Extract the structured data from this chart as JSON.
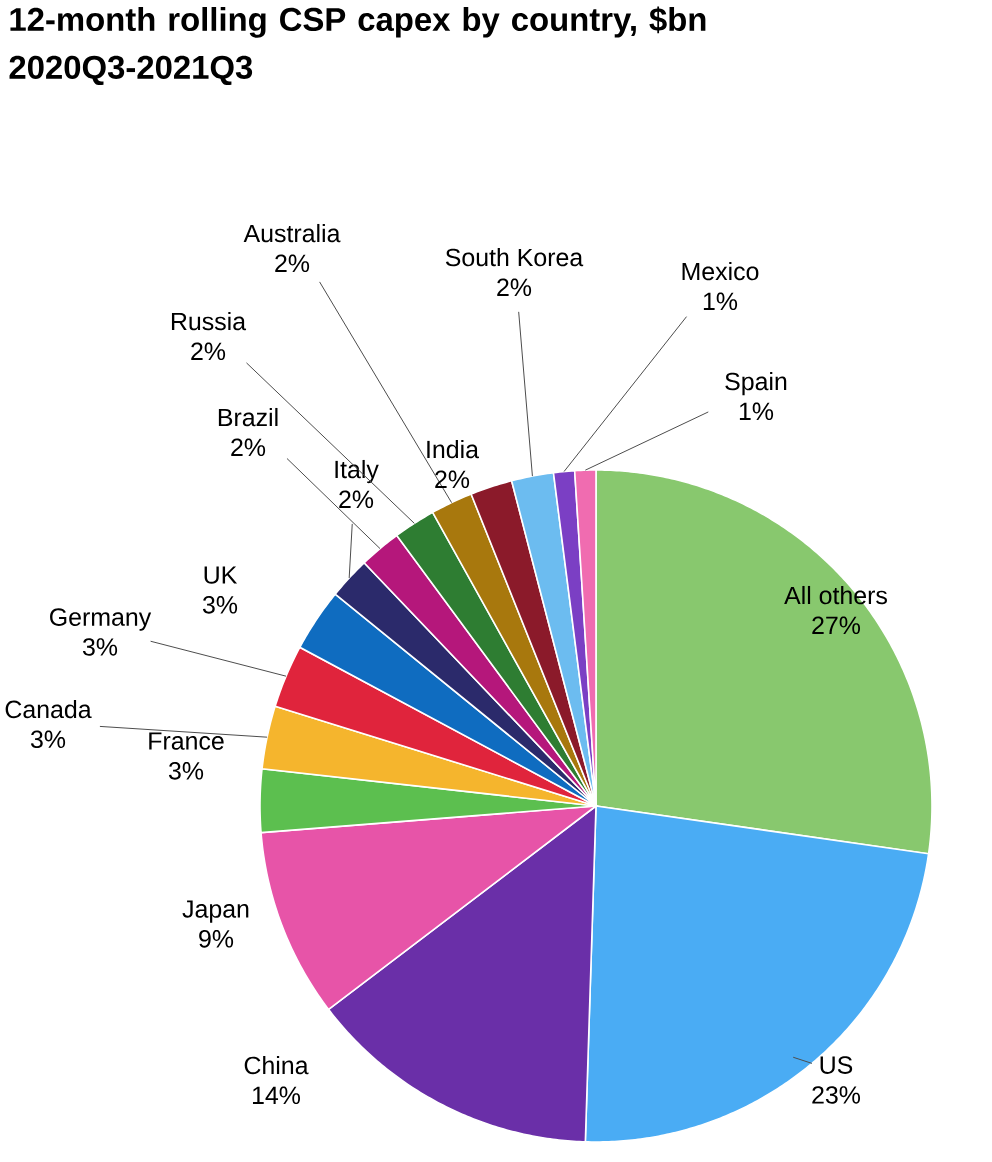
{
  "chart_data": {
    "type": "pie",
    "title": "12-month rolling CSP capex by country, $bn 2020Q3-2021Q3",
    "categories": [
      "All others",
      "US",
      "China",
      "Japan",
      "France",
      "Canada",
      "Germany",
      "UK",
      "Italy",
      "Brazil",
      "Russia",
      "Australia",
      "India",
      "South Korea",
      "Mexico",
      "Spain"
    ],
    "values": [
      27,
      23,
      14,
      9,
      3,
      3,
      3,
      3,
      2,
      2,
      2,
      2,
      2,
      2,
      1,
      1
    ],
    "value_labels": [
      "27%",
      "23%",
      "14%",
      "9%",
      "3%",
      "3%",
      "3%",
      "3%",
      "2%",
      "2%",
      "2%",
      "2%",
      "2%",
      "2%",
      "1%",
      "1%"
    ],
    "colors": [
      "#88c86e",
      "#4aacf4",
      "#6a2fa8",
      "#e754a8",
      "#5cbf4f",
      "#f5b52d",
      "#e0243c",
      "#0f6cc0",
      "#2b2a6b",
      "#b5177b",
      "#2e7d32",
      "#a8780d",
      "#8b1a2a",
      "#6cbcf0",
      "#7b3fc4",
      "#f06cb0"
    ]
  }
}
